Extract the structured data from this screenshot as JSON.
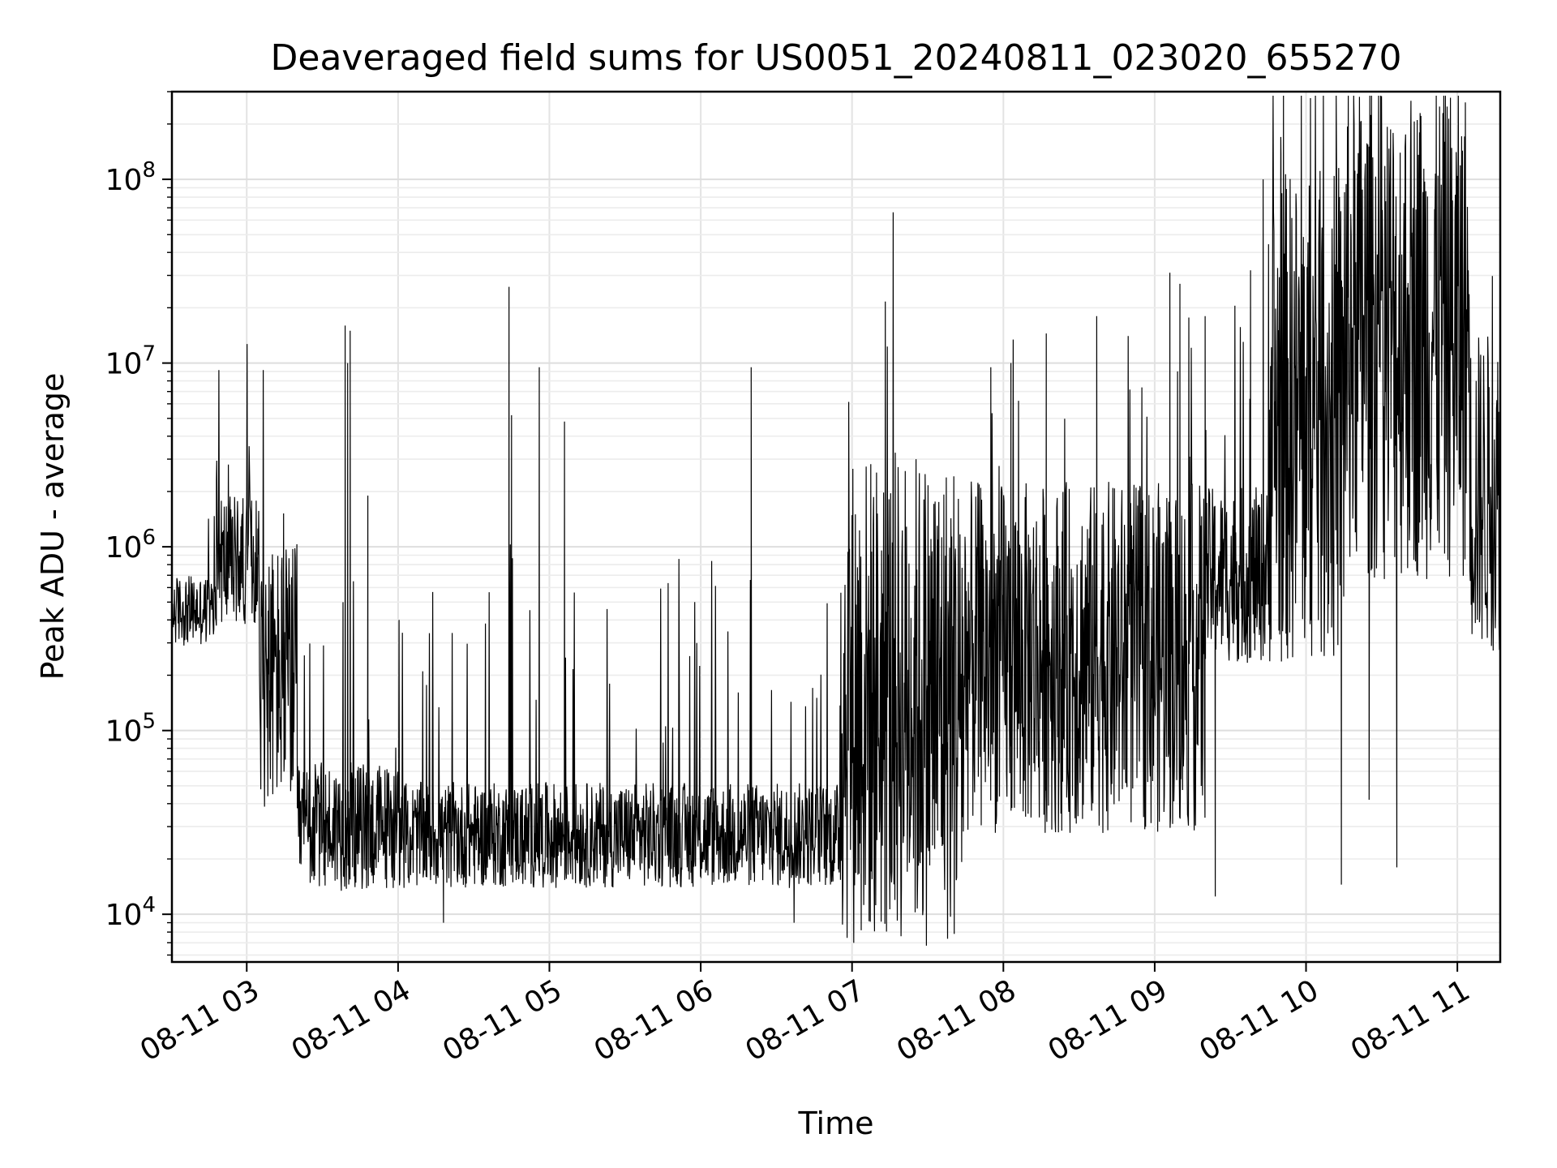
{
  "chart_data": {
    "type": "line",
    "title": "Deaveraged field sums for US0051_20240811_023020_655270",
    "xlabel": "Time",
    "ylabel": "Peak ADU - average",
    "yscale": "log",
    "xlim": [
      "2024-08-11 02:30:20",
      "2024-08-11 11:17:00"
    ],
    "ylim": [
      5500,
      300000000
    ],
    "grid": true,
    "color": "#000000",
    "x_tick_labels": [
      "08-11 03",
      "08-11 04",
      "08-11 05",
      "08-11 06",
      "08-11 07",
      "08-11 08",
      "08-11 09",
      "08-11 10",
      "08-11 11"
    ],
    "y_tick_labels": [
      {
        "value": 10000,
        "base": "10",
        "exp": "4"
      },
      {
        "value": 100000,
        "base": "10",
        "exp": "5"
      },
      {
        "value": 1000000,
        "base": "10",
        "exp": "6"
      },
      {
        "value": 10000000,
        "base": "10",
        "exp": "7"
      },
      {
        "value": 100000000,
        "base": "10",
        "exp": "8"
      }
    ],
    "series": [
      {
        "segments": [
          {
            "start": "02:30",
            "end": "02:48",
            "base": 450000,
            "spread": 0.12
          },
          {
            "start": "02:48",
            "end": "03:05",
            "base": 850000,
            "spread": 0.22
          },
          {
            "start": "03:05",
            "end": "03:20",
            "base": 200000,
            "spread": 0.45
          },
          {
            "start": "03:20",
            "end": "04:00",
            "base": 30000,
            "spread": 0.22
          },
          {
            "start": "04:00",
            "end": "06:55",
            "base": 27000,
            "spread": 0.18
          },
          {
            "start": "06:55",
            "end": "07:45",
            "base": 150000,
            "spread": 0.85
          },
          {
            "start": "07:45",
            "end": "09:20",
            "base": 250000,
            "spread": 0.6
          },
          {
            "start": "09:20",
            "end": "09:45",
            "base": 700000,
            "spread": 0.3
          },
          {
            "start": "09:45",
            "end": "10:15",
            "base": 5000000,
            "spread": 0.85
          },
          {
            "start": "10:15",
            "end": "11:05",
            "base": 15000000,
            "spread": 0.85
          },
          {
            "start": "11:05",
            "end": "11:17",
            "base": 2000000,
            "spread": 0.55
          }
        ],
        "spikes": [
          {
            "t": "02:48",
            "v": 2300000
          },
          {
            "t": "03:39",
            "v": 16000000
          },
          {
            "t": "03:40",
            "v": 10000000
          },
          {
            "t": "03:41",
            "v": 15000000
          },
          {
            "t": "03:48",
            "v": 1900000
          },
          {
            "t": "04:18",
            "v": 9000
          },
          {
            "t": "04:44",
            "v": 26000000
          },
          {
            "t": "04:45",
            "v": 5200000
          },
          {
            "t": "04:56",
            "v": 9500000
          },
          {
            "t": "05:06",
            "v": 4800000
          },
          {
            "t": "06:20",
            "v": 9500000
          },
          {
            "t": "06:37",
            "v": 9000
          },
          {
            "t": "07:55",
            "v": 9500000
          },
          {
            "t": "08:03",
            "v": 10000000
          },
          {
            "t": "08:17",
            "v": 14500000
          },
          {
            "t": "08:37",
            "v": 18000000
          },
          {
            "t": "09:06",
            "v": 31000000
          },
          {
            "t": "09:10",
            "v": 27000000
          },
          {
            "t": "09:20",
            "v": 18000000
          },
          {
            "t": "09:38",
            "v": 32000000
          },
          {
            "t": "09:43",
            "v": 100000000
          },
          {
            "t": "09:50",
            "v": 170000000
          },
          {
            "t": "10:30",
            "v": 160000000
          },
          {
            "t": "10:45",
            "v": 180000000
          },
          {
            "t": "10:55",
            "v": 160000000
          },
          {
            "t": "10:14",
            "v": 14500
          },
          {
            "t": "10:36",
            "v": 18000
          },
          {
            "t": "09:24",
            "v": 12500
          },
          {
            "t": "10:25",
            "v": 42000
          }
        ]
      }
    ]
  }
}
